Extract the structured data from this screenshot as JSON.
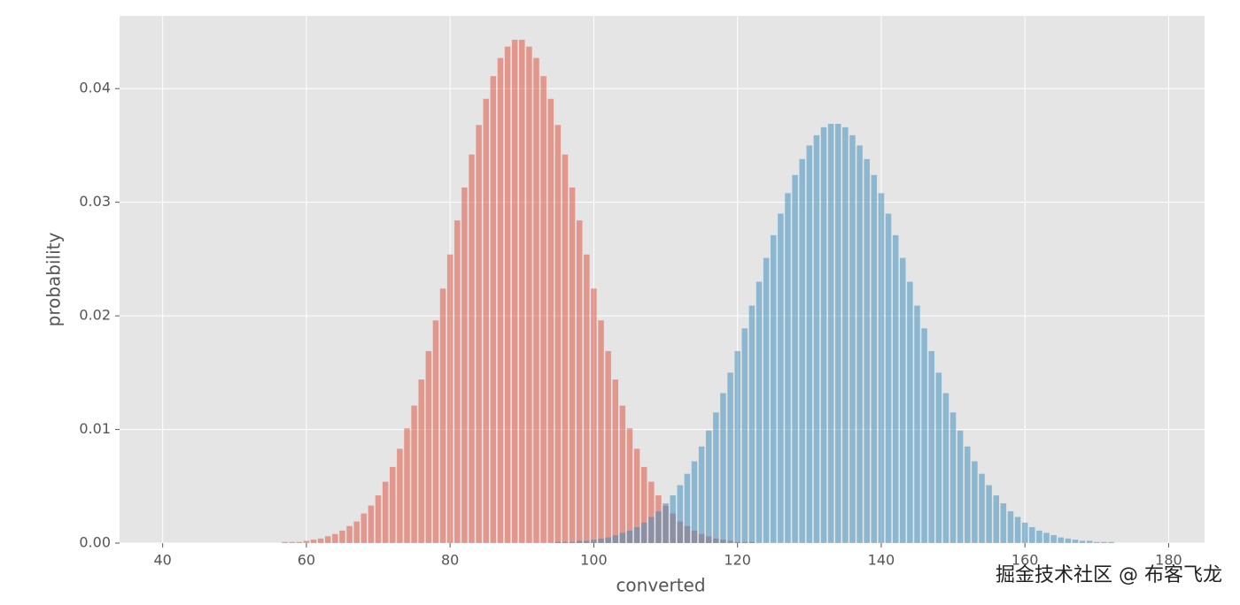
{
  "chart_data": {
    "type": "bar",
    "xlabel": "converted",
    "ylabel": "probability",
    "xlim": [
      34,
      185
    ],
    "ylim": [
      0,
      0.0464
    ],
    "xticks": [
      40,
      60,
      80,
      100,
      120,
      140,
      160,
      180
    ],
    "yticks": [
      {
        "value": 0,
        "label": "0.00"
      },
      {
        "value": 0.01,
        "label": "0.01"
      },
      {
        "value": 0.02,
        "label": "0.02"
      },
      {
        "value": 0.03,
        "label": "0.03"
      },
      {
        "value": 0.04,
        "label": "0.04"
      }
    ],
    "grid": true,
    "bar_width": 0.8,
    "opacity": 0.5,
    "series": [
      {
        "color": "#E24A33",
        "x": [
          57,
          58,
          59,
          60,
          61,
          62,
          63,
          64,
          65,
          66,
          67,
          68,
          69,
          70,
          71,
          72,
          73,
          74,
          75,
          76,
          77,
          78,
          79,
          80,
          81,
          82,
          83,
          84,
          85,
          86,
          87,
          88,
          89,
          90,
          91,
          92,
          93,
          94,
          95,
          96,
          97,
          98,
          99,
          100,
          101,
          102,
          103,
          104,
          105,
          106,
          107,
          108,
          109,
          110,
          111,
          112,
          113,
          114,
          115,
          116,
          117,
          118,
          119,
          120,
          121,
          122
        ],
        "values": [
          0.0001,
          0.0001,
          0.0001,
          0.0002,
          0.0003,
          0.0004,
          0.0006,
          0.0008,
          0.0011,
          0.0015,
          0.0019,
          0.0026,
          0.0033,
          0.0042,
          0.0054,
          0.0067,
          0.0083,
          0.0101,
          0.0121,
          0.0144,
          0.0169,
          0.0196,
          0.0224,
          0.0254,
          0.0284,
          0.0313,
          0.0342,
          0.0368,
          0.0391,
          0.0411,
          0.0427,
          0.0437,
          0.0443,
          0.0443,
          0.0437,
          0.0427,
          0.0411,
          0.0391,
          0.0368,
          0.0342,
          0.0313,
          0.0284,
          0.0254,
          0.0224,
          0.0196,
          0.0169,
          0.0144,
          0.0121,
          0.0101,
          0.0083,
          0.0067,
          0.0054,
          0.0042,
          0.0033,
          0.0026,
          0.0019,
          0.0015,
          0.0011,
          0.0008,
          0.0006,
          0.0004,
          0.0003,
          0.0002,
          0.0001,
          0.0001,
          0.0001
        ]
      },
      {
        "color": "#348ABD",
        "x": [
          95,
          96,
          97,
          98,
          99,
          100,
          101,
          102,
          103,
          104,
          105,
          106,
          107,
          108,
          109,
          110,
          111,
          112,
          113,
          114,
          115,
          116,
          117,
          118,
          119,
          120,
          121,
          122,
          123,
          124,
          125,
          126,
          127,
          128,
          129,
          130,
          131,
          132,
          133,
          134,
          135,
          136,
          137,
          138,
          139,
          140,
          141,
          142,
          143,
          144,
          145,
          146,
          147,
          148,
          149,
          150,
          151,
          152,
          153,
          154,
          155,
          156,
          157,
          158,
          159,
          160,
          161,
          162,
          163,
          164,
          165,
          166,
          167,
          168,
          169,
          170,
          171,
          172
        ],
        "values": [
          0.0001,
          0.0001,
          0.0001,
          0.0002,
          0.0002,
          0.0003,
          0.0004,
          0.0005,
          0.0007,
          0.0009,
          0.0011,
          0.0014,
          0.0018,
          0.0023,
          0.0028,
          0.0035,
          0.0042,
          0.0051,
          0.0061,
          0.0072,
          0.0085,
          0.0099,
          0.0115,
          0.0132,
          0.015,
          0.0169,
          0.0189,
          0.0209,
          0.023,
          0.0251,
          0.0271,
          0.029,
          0.0308,
          0.0324,
          0.0338,
          0.035,
          0.0359,
          0.0366,
          0.0369,
          0.0369,
          0.0366,
          0.0359,
          0.035,
          0.0338,
          0.0324,
          0.0308,
          0.029,
          0.0271,
          0.0251,
          0.023,
          0.0209,
          0.0189,
          0.0169,
          0.015,
          0.0132,
          0.0115,
          0.0099,
          0.0085,
          0.0072,
          0.0061,
          0.0051,
          0.0042,
          0.0035,
          0.0028,
          0.0023,
          0.0018,
          0.0014,
          0.0011,
          0.0009,
          0.0007,
          0.0005,
          0.0004,
          0.0003,
          0.0002,
          0.0002,
          0.0001,
          0.0001,
          0.0001
        ]
      }
    ],
    "watermark": "掘金技术社区 @ 布客飞龙"
  }
}
